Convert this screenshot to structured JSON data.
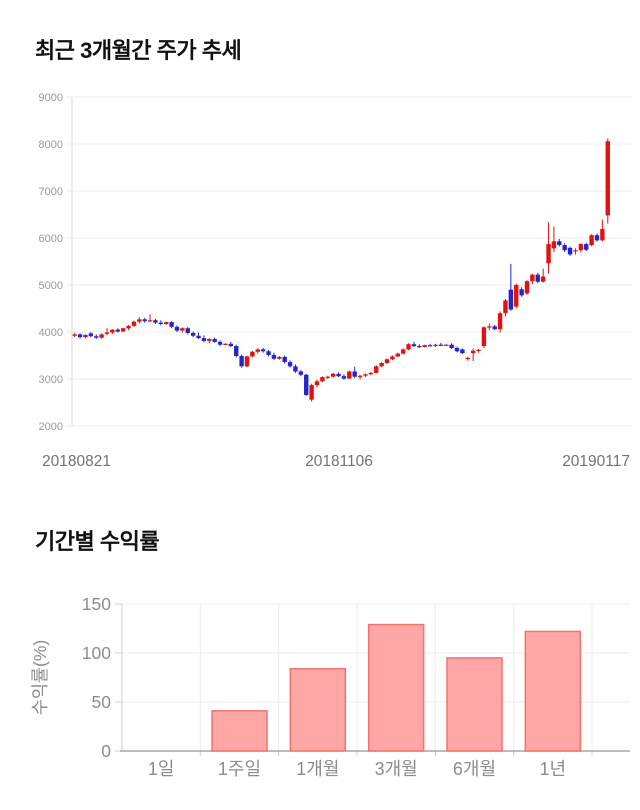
{
  "page": {
    "background": "#ffffff"
  },
  "chart_data": [
    {
      "type": "candlestick",
      "title": "최근 3개월간 주가 추세",
      "ylim": [
        2000,
        9000
      ],
      "y_ticks": [
        2000,
        3000,
        4000,
        5000,
        6000,
        7000,
        8000,
        9000
      ],
      "x_tick_labels": [
        "20180821",
        "20181106",
        "20190117"
      ],
      "grid": true,
      "up_color": "#e01212",
      "down_color": "#2525cc",
      "grid_color": "#ededed",
      "axis_color": "#d9d9d9",
      "tick_label_color": "#999999",
      "x_label_color": "#737373",
      "candles_format": "open_high_low_close",
      "candles": [
        [
          3920,
          3980,
          3890,
          3950
        ],
        [
          3950,
          3970,
          3860,
          3890
        ],
        [
          3890,
          3950,
          3870,
          3940
        ],
        [
          3970,
          4000,
          3890,
          3910
        ],
        [
          3910,
          3950,
          3850,
          3880
        ],
        [
          3880,
          3970,
          3860,
          3950
        ],
        [
          3960,
          4080,
          3930,
          3990
        ],
        [
          3990,
          4060,
          3960,
          4050
        ],
        [
          4050,
          4080,
          3990,
          4010
        ],
        [
          4010,
          4090,
          4000,
          4080
        ],
        [
          4080,
          4150,
          4040,
          4130
        ],
        [
          4130,
          4240,
          4110,
          4220
        ],
        [
          4220,
          4310,
          4180,
          4270
        ],
        [
          4270,
          4300,
          4200,
          4230
        ],
        [
          4230,
          4380,
          4210,
          4250
        ],
        [
          4250,
          4280,
          4170,
          4200
        ],
        [
          4200,
          4250,
          4140,
          4170
        ],
        [
          4170,
          4220,
          4150,
          4210
        ],
        [
          4210,
          4230,
          4080,
          4110
        ],
        [
          4110,
          4140,
          4000,
          4030
        ],
        [
          4030,
          4100,
          3990,
          4080
        ],
        [
          4080,
          4110,
          3950,
          3980
        ],
        [
          3980,
          4010,
          3890,
          3920
        ],
        [
          3920,
          3990,
          3850,
          3870
        ],
        [
          3870,
          3930,
          3780,
          3810
        ],
        [
          3810,
          3870,
          3760,
          3850
        ],
        [
          3850,
          3880,
          3770,
          3790
        ],
        [
          3790,
          3820,
          3700,
          3730
        ],
        [
          3730,
          3760,
          3720,
          3750
        ],
        [
          3750,
          3790,
          3680,
          3700
        ],
        [
          3700,
          3730,
          3460,
          3490
        ],
        [
          3490,
          3520,
          3240,
          3270
        ],
        [
          3270,
          3500,
          3250,
          3480
        ],
        [
          3480,
          3600,
          3460,
          3580
        ],
        [
          3580,
          3650,
          3540,
          3630
        ],
        [
          3630,
          3660,
          3560,
          3590
        ],
        [
          3590,
          3620,
          3480,
          3510
        ],
        [
          3510,
          3560,
          3400,
          3430
        ],
        [
          3430,
          3490,
          3410,
          3470
        ],
        [
          3470,
          3500,
          3330,
          3360
        ],
        [
          3360,
          3400,
          3240,
          3270
        ],
        [
          3270,
          3310,
          3130,
          3160
        ],
        [
          3160,
          3190,
          3060,
          3090
        ],
        [
          3090,
          3110,
          2640,
          2660
        ],
        [
          2560,
          2900,
          2520,
          2870
        ],
        [
          2870,
          2990,
          2820,
          2950
        ],
        [
          2950,
          3060,
          2930,
          3040
        ],
        [
          3040,
          3070,
          3000,
          3050
        ],
        [
          3050,
          3130,
          3030,
          3110
        ],
        [
          3110,
          3140,
          3040,
          3060
        ],
        [
          3060,
          3100,
          2980,
          3010
        ],
        [
          3010,
          3180,
          3000,
          3160
        ],
        [
          3160,
          3260,
          3020,
          3050
        ],
        [
          3050,
          3090,
          2990,
          3070
        ],
        [
          3070,
          3120,
          3040,
          3100
        ],
        [
          3100,
          3150,
          3080,
          3130
        ],
        [
          3130,
          3290,
          3120,
          3270
        ],
        [
          3270,
          3360,
          3250,
          3340
        ],
        [
          3340,
          3440,
          3320,
          3420
        ],
        [
          3420,
          3500,
          3400,
          3480
        ],
        [
          3480,
          3560,
          3460,
          3540
        ],
        [
          3540,
          3650,
          3520,
          3630
        ],
        [
          3630,
          3760,
          3610,
          3740
        ],
        [
          3740,
          3790,
          3680,
          3700
        ],
        [
          3700,
          3740,
          3660,
          3680
        ],
        [
          3680,
          3730,
          3670,
          3720
        ],
        [
          3720,
          3750,
          3690,
          3710
        ],
        [
          3710,
          3750,
          3680,
          3730
        ],
        [
          3730,
          3770,
          3700,
          3720
        ],
        [
          3720,
          3740,
          3700,
          3730
        ],
        [
          3730,
          3760,
          3640,
          3660
        ],
        [
          3660,
          3690,
          3570,
          3590
        ],
        [
          3630,
          3650,
          3530,
          3550
        ],
        [
          3430,
          3470,
          3390,
          3450
        ],
        [
          3550,
          3650,
          3380,
          3600
        ],
        [
          3600,
          3640,
          3560,
          3620
        ],
        [
          3700,
          4120,
          3660,
          4100
        ],
        [
          4100,
          4180,
          4040,
          4120
        ],
        [
          4120,
          4150,
          4040,
          4060
        ],
        [
          4060,
          4440,
          3990,
          4400
        ],
        [
          4400,
          4700,
          4330,
          4670
        ],
        [
          4900,
          5450,
          4450,
          4480
        ],
        [
          4540,
          5030,
          4500,
          5000
        ],
        [
          4910,
          4950,
          4750,
          4780
        ],
        [
          4820,
          5100,
          4790,
          5080
        ],
        [
          5080,
          5240,
          5020,
          5220
        ],
        [
          5220,
          5260,
          5040,
          5070
        ],
        [
          5070,
          5350,
          5050,
          5180
        ],
        [
          5460,
          6340,
          5240,
          5870
        ],
        [
          5780,
          6240,
          5700,
          5930
        ],
        [
          5930,
          5980,
          5820,
          5850
        ],
        [
          5850,
          5890,
          5700,
          5740
        ],
        [
          5790,
          5820,
          5620,
          5650
        ],
        [
          5740,
          5780,
          5650,
          5740
        ],
        [
          5740,
          5890,
          5690,
          5870
        ],
        [
          5870,
          5900,
          5720,
          5750
        ],
        [
          5850,
          6080,
          5820,
          6060
        ],
        [
          6060,
          6090,
          5920,
          5950
        ],
        [
          5950,
          6390,
          5930,
          6190
        ],
        [
          6480,
          8120,
          6310,
          8060
        ]
      ]
    },
    {
      "type": "bar",
      "title": "기간별 수익률",
      "categories": [
        "1일",
        "1주일",
        "1개월",
        "3개월",
        "6개월",
        "1년"
      ],
      "values": [
        0,
        41,
        84,
        129,
        95,
        122
      ],
      "ylabel": "수익률(%)",
      "xlabel": "",
      "ylim": [
        0,
        150
      ],
      "y_ticks": [
        0,
        50,
        100,
        150
      ],
      "grid": true,
      "legend": "none",
      "bar_fill": "#ffa6a6",
      "bar_stroke": "#f2746f",
      "grid_color": "#ececec",
      "baseline_color": "#a6a6a6",
      "tick_label_color": "#8c8c8c"
    }
  ]
}
